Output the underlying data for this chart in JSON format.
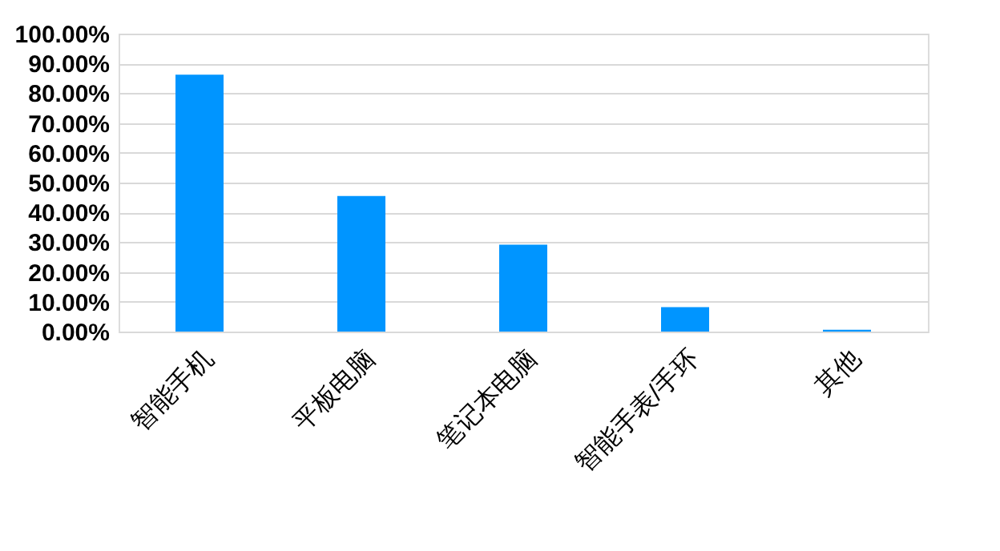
{
  "chart_data": {
    "type": "bar",
    "categories": [
      "智能手机",
      "平板电脑",
      "笔记本电脑",
      "智能手表/手环",
      "其他"
    ],
    "values": [
      86.2,
      45.5,
      29.2,
      8.2,
      0.6
    ],
    "color": "#0095ff",
    "ylim": [
      0,
      100
    ],
    "yticks": [
      {
        "value": 0,
        "label": "0.00%"
      },
      {
        "value": 10,
        "label": "10.00%"
      },
      {
        "value": 20,
        "label": "20.00%"
      },
      {
        "value": 30,
        "label": "30.00%"
      },
      {
        "value": 40,
        "label": "40.00%"
      },
      {
        "value": 50,
        "label": "50.00%"
      },
      {
        "value": 60,
        "label": "60.00%"
      },
      {
        "value": 70,
        "label": "70.00%"
      },
      {
        "value": 80,
        "label": "80.00%"
      },
      {
        "value": 90,
        "label": "90.00%"
      },
      {
        "value": 100,
        "label": "100.00%"
      }
    ],
    "grid": "y"
  }
}
